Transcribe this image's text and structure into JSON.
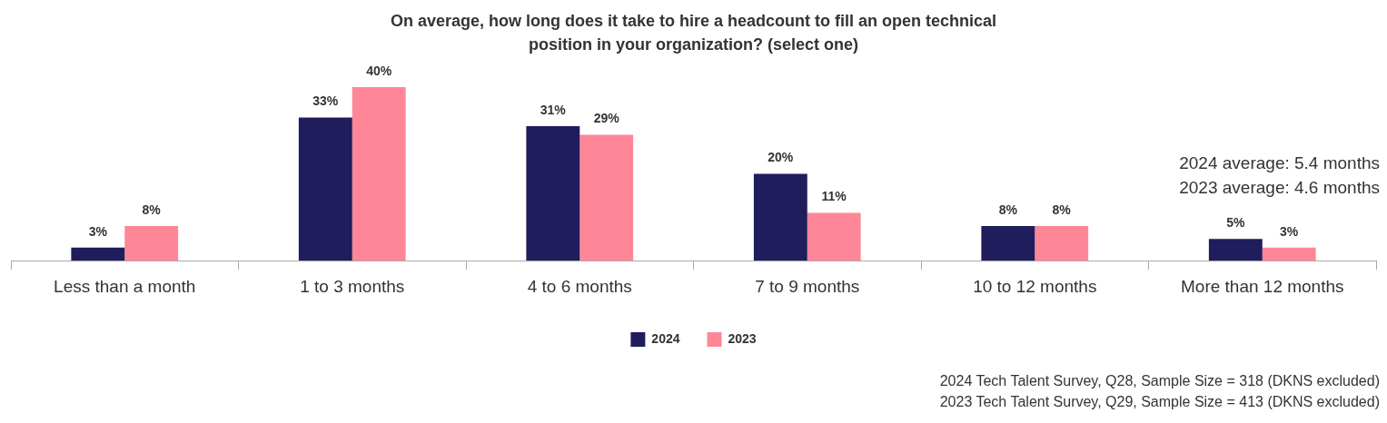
{
  "chart_data": {
    "type": "bar",
    "title": "On average, how long does it take to hire a headcount to fill an open technical position in your organization? (select one)",
    "categories": [
      "Less than a month",
      "1 to 3 months",
      "4 to 6 months",
      "7 to 9 months",
      "10 to 12 months",
      "More than 12 months"
    ],
    "series": [
      {
        "name": "2024",
        "color": "#1f1d5c",
        "values": [
          3,
          33,
          31,
          20,
          8,
          5
        ],
        "value_labels": [
          "3%",
          "33%",
          "31%",
          "20%",
          "8%",
          "5%"
        ]
      },
      {
        "name": "2023",
        "color": "#ff8696",
        "values": [
          8,
          40,
          29,
          11,
          8,
          3
        ],
        "value_labels": [
          "8%",
          "40%",
          "29%",
          "11%",
          "8%",
          "3%"
        ]
      }
    ],
    "legend": "bottom",
    "tick_labels": "x",
    "annotations": [
      "2024 average: 5.4 months",
      "2023 average: 4.6 months",
      "2024 Tech Talent Survey, Q28, Sample Size = 318 (DKNS excluded)",
      "2023 Tech Talent Survey, Q29, Sample Size = 413 (DKNS excluded)"
    ]
  }
}
